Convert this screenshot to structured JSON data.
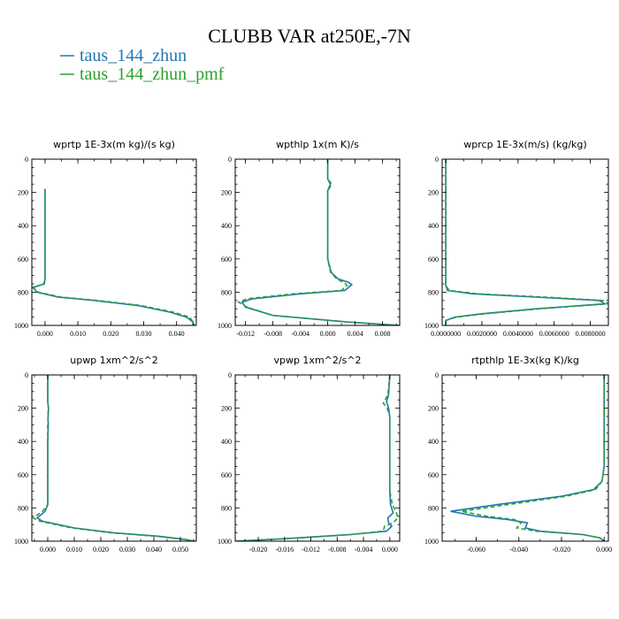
{
  "figure": {
    "title": "CLUBB VAR at250E,-7N",
    "legend": [
      {
        "label": "taus_144_zhun",
        "color": "#1f77b4",
        "dash": "solid"
      },
      {
        "label": "taus_144_zhun_pmf",
        "color": "#2ca02c",
        "dash": "dashed"
      }
    ]
  },
  "chart_data": [
    {
      "type": "line",
      "title": "wprtp  1E-3x(m kg)/(s kg)",
      "xlim": [
        -0.004,
        0.046
      ],
      "ylim": [
        0,
        1000
      ],
      "y_inverted": true,
      "xticks": [
        0.0,
        0.01,
        0.02,
        0.03,
        0.04
      ],
      "xtick_labels": [
        "0.000",
        "0.010",
        "0.020",
        "0.030",
        "0.040"
      ],
      "yticks": [
        0,
        200,
        400,
        600,
        800,
        1000
      ],
      "series": [
        {
          "name": "taus_144_zhun",
          "x": [
            0.0,
            0.0,
            0.0,
            0.0,
            0.0,
            -0.0002,
            -0.0035,
            -0.0025,
            0.004,
            0.015,
            0.028,
            0.038,
            0.043,
            0.045,
            0.045
          ],
          "y": [
            180,
            400,
            600,
            680,
            720,
            750,
            770,
            800,
            830,
            850,
            880,
            920,
            950,
            980,
            1000
          ]
        },
        {
          "name": "taus_144_zhun_pmf",
          "x": [
            0.0,
            0.0,
            0.0,
            0.0,
            0.0,
            -0.0004,
            -0.0038,
            -0.002,
            0.005,
            0.016,
            0.029,
            0.039,
            0.044,
            0.045,
            0.0455
          ],
          "y": [
            180,
            400,
            600,
            680,
            720,
            752,
            772,
            800,
            830,
            850,
            880,
            920,
            950,
            980,
            1000
          ]
        }
      ]
    },
    {
      "type": "line",
      "title": "wpthlp  1x(m K)/s",
      "xlim": [
        -0.0135,
        0.0105
      ],
      "ylim": [
        0,
        1000
      ],
      "y_inverted": true,
      "xticks": [
        -0.012,
        -0.008,
        -0.004,
        0.0,
        0.004,
        0.008
      ],
      "xtick_labels": [
        "-0.012",
        "-0.008",
        "-0.004",
        "0.000",
        "0.004",
        "0.008"
      ],
      "yticks": [
        0,
        200,
        400,
        600,
        800,
        1000
      ],
      "series": [
        {
          "name": "taus_144_zhun",
          "x": [
            0.0,
            0.0,
            0.0004,
            0.0,
            0.0,
            0.0005,
            0.0015,
            0.003,
            0.0035,
            0.0025,
            -0.004,
            -0.011,
            -0.0125,
            -0.012,
            -0.008,
            0.003,
            0.0105
          ],
          "y": [
            0,
            120,
            150,
            190,
            600,
            680,
            720,
            740,
            755,
            790,
            810,
            840,
            860,
            890,
            940,
            980,
            1000
          ]
        },
        {
          "name": "taus_144_zhun_pmf",
          "x": [
            0.0,
            0.0,
            0.0006,
            0.0,
            0.0,
            0.0004,
            0.0013,
            0.0025,
            0.0028,
            0.002,
            -0.005,
            -0.0118,
            -0.013,
            -0.0118,
            -0.008,
            0.003,
            0.0105
          ],
          "y": [
            0,
            120,
            150,
            190,
            600,
            680,
            720,
            745,
            760,
            790,
            810,
            840,
            860,
            890,
            940,
            980,
            1000
          ]
        }
      ]
    },
    {
      "type": "line",
      "title": "wprcp  1E-3x(m/s) (kg/kg)",
      "xlim": [
        -0.0002,
        0.009
      ],
      "ylim": [
        0,
        1000
      ],
      "y_inverted": true,
      "xticks": [
        0.0,
        0.002,
        0.004,
        0.006,
        0.008
      ],
      "xtick_labels": [
        "0.0000000",
        "0.0020000",
        "0.0040000",
        "0.0060000",
        "0.0080000"
      ],
      "yticks": [
        0,
        200,
        400,
        600,
        800,
        1000
      ],
      "series": [
        {
          "name": "taus_144_zhun",
          "x": [
            0.0,
            0.0,
            0.0,
            0.0001,
            0.0015,
            0.005,
            0.0085,
            0.0088,
            0.005,
            0.002,
            0.0005,
            0.0,
            0.0
          ],
          "y": [
            0,
            400,
            760,
            790,
            810,
            830,
            850,
            870,
            900,
            930,
            950,
            970,
            1000
          ]
        },
        {
          "name": "taus_144_zhun_pmf",
          "x": [
            0.0,
            0.0,
            0.0,
            0.0002,
            0.0018,
            0.0055,
            0.0087,
            0.009,
            0.0052,
            0.0022,
            0.0006,
            0.0,
            0.0
          ],
          "y": [
            0,
            400,
            760,
            790,
            810,
            830,
            850,
            870,
            900,
            930,
            950,
            970,
            1000
          ]
        }
      ]
    },
    {
      "type": "line",
      "title": "upwp  1xm^2/s^2",
      "xlim": [
        -0.006,
        0.056
      ],
      "ylim": [
        0,
        1000
      ],
      "y_inverted": true,
      "xticks": [
        0.0,
        0.01,
        0.02,
        0.03,
        0.04,
        0.05
      ],
      "xtick_labels": [
        "0.000",
        "0.010",
        "0.020",
        "0.030",
        "0.040",
        "0.050"
      ],
      "yticks": [
        0,
        200,
        400,
        600,
        800,
        1000
      ],
      "series": [
        {
          "name": "taus_144_zhun",
          "x": [
            0.0,
            0.0,
            0.0003,
            0.0001,
            0.0002,
            0.0,
            0.0,
            -0.001,
            -0.004,
            -0.002,
            0.01,
            0.025,
            0.042,
            0.052,
            0.055
          ],
          "y": [
            0,
            160,
            200,
            260,
            300,
            400,
            780,
            820,
            860,
            880,
            920,
            950,
            970,
            990,
            1000
          ]
        },
        {
          "name": "taus_144_zhun_pmf",
          "x": [
            0.0,
            0.0,
            0.0002,
            0.0001,
            0.0,
            0.0,
            0.0,
            -0.002,
            -0.0055,
            -0.003,
            0.009,
            0.024,
            0.041,
            0.051,
            0.0555
          ],
          "y": [
            0,
            160,
            200,
            260,
            300,
            400,
            780,
            820,
            860,
            880,
            920,
            950,
            970,
            990,
            1000
          ]
        }
      ]
    },
    {
      "type": "line",
      "title": "vpwp  1xm^2/s^2",
      "xlim": [
        -0.0235,
        0.0015
      ],
      "ylim": [
        0,
        1000
      ],
      "y_inverted": true,
      "xticks": [
        -0.02,
        -0.016,
        -0.012,
        -0.008,
        -0.004,
        0.0
      ],
      "xtick_labels": [
        "-0.020",
        "-0.016",
        "-0.012",
        "-0.008",
        "-0.004",
        "0.000"
      ],
      "yticks": [
        0,
        200,
        400,
        600,
        800,
        1000
      ],
      "series": [
        {
          "name": "taus_144_zhun",
          "x": [
            0.0,
            -0.0002,
            -0.0005,
            -0.0002,
            0.0,
            0.0,
            0.0,
            0.0001,
            0.0005,
            -0.0003,
            -0.0002,
            0.0003,
            -0.0005,
            -0.006,
            -0.016,
            -0.0235
          ],
          "y": [
            0,
            120,
            160,
            200,
            250,
            400,
            700,
            780,
            830,
            860,
            890,
            910,
            940,
            960,
            985,
            1000
          ]
        },
        {
          "name": "taus_144_zhun_pmf",
          "x": [
            0.0,
            -0.0003,
            -0.001,
            -0.0004,
            0.0,
            0.0,
            0.0,
            0.0004,
            0.001,
            0.0012,
            0.0005,
            -0.0008,
            -0.001,
            -0.006,
            -0.016,
            -0.0235
          ],
          "y": [
            0,
            120,
            170,
            200,
            250,
            400,
            700,
            780,
            830,
            860,
            890,
            910,
            940,
            960,
            985,
            1000
          ]
        }
      ]
    },
    {
      "type": "line",
      "title": "rtpthlp  1E-3x(kg K)/kg",
      "xlim": [
        -0.076,
        0.002
      ],
      "ylim": [
        0,
        1000
      ],
      "y_inverted": true,
      "xticks": [
        -0.06,
        -0.04,
        -0.02,
        0.0
      ],
      "xtick_labels": [
        "-0.060",
        "-0.040",
        "-0.020",
        "0.000"
      ],
      "yticks": [
        0,
        200,
        400,
        600,
        800,
        1000
      ],
      "series": [
        {
          "name": "taus_144_zhun",
          "x": [
            0.0,
            0.0,
            -0.001,
            -0.005,
            -0.02,
            -0.05,
            -0.072,
            -0.06,
            -0.045,
            -0.036,
            -0.037,
            -0.03,
            -0.01,
            -0.002,
            0.0
          ],
          "y": [
            0,
            550,
            640,
            690,
            730,
            780,
            820,
            850,
            870,
            890,
            920,
            940,
            960,
            980,
            1000
          ]
        },
        {
          "name": "taus_144_zhun_pmf",
          "x": [
            0.0,
            0.0,
            -0.001,
            -0.004,
            -0.018,
            -0.045,
            -0.067,
            -0.055,
            -0.042,
            -0.039,
            -0.041,
            -0.032,
            -0.01,
            -0.002,
            0.0
          ],
          "y": [
            0,
            550,
            640,
            690,
            730,
            780,
            820,
            850,
            870,
            890,
            920,
            940,
            960,
            980,
            1000
          ]
        }
      ]
    }
  ]
}
